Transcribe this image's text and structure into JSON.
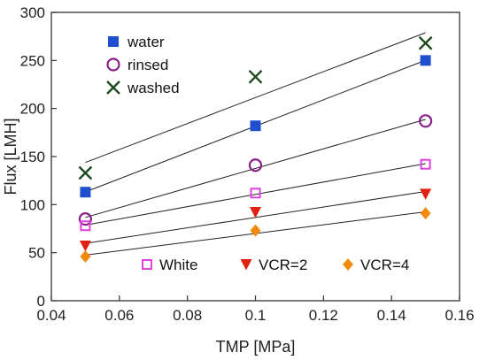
{
  "chart_data": {
    "type": "scatter",
    "xlabel": "TMP [MPa]",
    "ylabel": "Flux [LMH]",
    "xlim": [
      0.04,
      0.16
    ],
    "ylim": [
      0,
      300
    ],
    "xticks": [
      "0.04",
      "0.06",
      "0.08",
      "0.1",
      "0.12",
      "0.14",
      "0.16"
    ],
    "yticks": [
      "0",
      "50",
      "100",
      "150",
      "200",
      "250",
      "300"
    ],
    "grid": false,
    "x": [
      0.05,
      0.1,
      0.15
    ],
    "series": [
      {
        "name": "water",
        "marker": "filled-square",
        "color": "#1f4fcf",
        "values": [
          113,
          182,
          250
        ],
        "fit": true
      },
      {
        "name": "rinsed",
        "marker": "open-circle",
        "color": "#8a1f8a",
        "values": [
          85,
          141,
          187
        ],
        "fit": true
      },
      {
        "name": "washed",
        "marker": "x",
        "color": "#1f4a1f",
        "values": [
          133,
          233,
          268
        ],
        "fit": true
      },
      {
        "name": "White",
        "marker": "open-square",
        "color": "#e040e0",
        "values": [
          78,
          112,
          142
        ],
        "fit": true
      },
      {
        "name": "VCR=2",
        "marker": "filled-triangle-down",
        "color": "#e02010",
        "values": [
          57,
          92,
          111
        ],
        "fit": true
      },
      {
        "name": "VCR=4",
        "marker": "filled-diamond",
        "color": "#f28a10",
        "values": [
          46,
          73,
          91
        ],
        "fit": true
      }
    ],
    "legend_upper": [
      "water",
      "rinsed",
      "washed"
    ],
    "legend_lower": [
      "White",
      "VCR=2",
      "VCR=4"
    ],
    "legend_placement": "top-left and bottom"
  }
}
